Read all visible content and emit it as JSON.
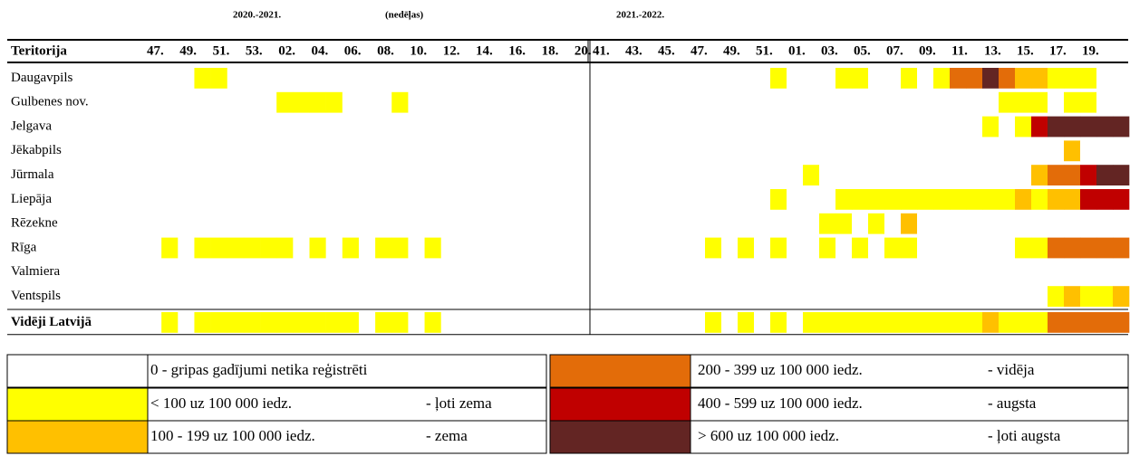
{
  "season_left": "2020.-2021.",
  "weeks_note": "(nedēļas)",
  "season_right": "2021.-2022.",
  "row_header": "Teritorija",
  "columns": {
    "left": [
      "47.",
      null,
      "49.",
      null,
      "51.",
      null,
      "53.",
      null,
      "02.",
      null,
      "04.",
      null,
      "06.",
      null,
      "08.",
      null,
      "10.",
      null,
      "12.",
      null,
      "14.",
      null,
      "16.",
      null,
      "18.",
      null,
      "20."
    ],
    "right": [
      "41.",
      null,
      "43.",
      null,
      "45.",
      null,
      "47.",
      null,
      "49.",
      null,
      "51.",
      null,
      "01.",
      null,
      "03.",
      null,
      "05.",
      null,
      "07.",
      null,
      "09.",
      null,
      "11.",
      null,
      "13.",
      null,
      "15.",
      null,
      "17.",
      null,
      "19.",
      null,
      null
    ]
  },
  "rows": [
    {
      "name": "Daugavpils",
      "left": [
        0,
        0,
        0,
        1,
        1,
        0,
        0,
        0,
        0,
        0,
        0,
        0,
        0,
        0,
        0,
        0,
        0,
        0,
        0,
        0,
        0,
        0,
        0,
        0,
        0,
        0,
        0
      ],
      "right": [
        0,
        0,
        0,
        0,
        0,
        0,
        0,
        0,
        0,
        0,
        0,
        1,
        0,
        0,
        0,
        1,
        1,
        0,
        0,
        1,
        0,
        1,
        3,
        3,
        5,
        3,
        2,
        2,
        1,
        1,
        1,
        0,
        0
      ]
    },
    {
      "name": "Gulbenes nov.",
      "left": [
        0,
        0,
        0,
        0,
        0,
        0,
        0,
        0,
        1,
        1,
        1,
        1,
        0,
        0,
        0,
        1,
        0,
        0,
        0,
        0,
        0,
        0,
        0,
        0,
        0,
        0,
        0
      ],
      "right": [
        0,
        0,
        0,
        0,
        0,
        0,
        0,
        0,
        0,
        0,
        0,
        0,
        0,
        0,
        0,
        0,
        0,
        0,
        0,
        0,
        0,
        0,
        0,
        0,
        0,
        1,
        1,
        1,
        0,
        1,
        1,
        0,
        0
      ]
    },
    {
      "name": "Jelgava",
      "left": [
        0,
        0,
        0,
        0,
        0,
        0,
        0,
        0,
        0,
        0,
        0,
        0,
        0,
        0,
        0,
        0,
        0,
        0,
        0,
        0,
        0,
        0,
        0,
        0,
        0,
        0,
        0
      ],
      "right": [
        0,
        0,
        0,
        0,
        0,
        0,
        0,
        0,
        0,
        0,
        0,
        0,
        0,
        0,
        0,
        0,
        0,
        0,
        0,
        0,
        0,
        0,
        0,
        0,
        1,
        0,
        1,
        4,
        5,
        5,
        5,
        5,
        5
      ]
    },
    {
      "name": "Jēkabpils",
      "left": [
        0,
        0,
        0,
        0,
        0,
        0,
        0,
        0,
        0,
        0,
        0,
        0,
        0,
        0,
        0,
        0,
        0,
        0,
        0,
        0,
        0,
        0,
        0,
        0,
        0,
        0,
        0
      ],
      "right": [
        0,
        0,
        0,
        0,
        0,
        0,
        0,
        0,
        0,
        0,
        0,
        0,
        0,
        0,
        0,
        0,
        0,
        0,
        0,
        0,
        0,
        0,
        0,
        0,
        0,
        0,
        0,
        0,
        0,
        2,
        0,
        0,
        0
      ]
    },
    {
      "name": "Jūrmala",
      "left": [
        0,
        0,
        0,
        0,
        0,
        0,
        0,
        0,
        0,
        0,
        0,
        0,
        0,
        0,
        0,
        0,
        0,
        0,
        0,
        0,
        0,
        0,
        0,
        0,
        0,
        0,
        0
      ],
      "right": [
        0,
        0,
        0,
        0,
        0,
        0,
        0,
        0,
        0,
        0,
        0,
        0,
        0,
        1,
        0,
        0,
        0,
        0,
        0,
        0,
        0,
        0,
        0,
        0,
        0,
        0,
        0,
        2,
        3,
        3,
        4,
        5,
        5
      ]
    },
    {
      "name": "Liepāja",
      "left": [
        0,
        0,
        0,
        0,
        0,
        0,
        0,
        0,
        0,
        0,
        0,
        0,
        0,
        0,
        0,
        0,
        0,
        0,
        0,
        0,
        0,
        0,
        0,
        0,
        0,
        0,
        0
      ],
      "right": [
        0,
        0,
        0,
        0,
        0,
        0,
        0,
        0,
        0,
        0,
        0,
        1,
        0,
        0,
        0,
        1,
        1,
        1,
        1,
        1,
        1,
        1,
        1,
        1,
        1,
        1,
        2,
        1,
        2,
        2,
        4,
        4,
        4
      ]
    },
    {
      "name": "Rēzekne",
      "left": [
        0,
        0,
        0,
        0,
        0,
        0,
        0,
        0,
        0,
        0,
        0,
        0,
        0,
        0,
        0,
        0,
        0,
        0,
        0,
        0,
        0,
        0,
        0,
        0,
        0,
        0,
        0
      ],
      "right": [
        0,
        0,
        0,
        0,
        0,
        0,
        0,
        0,
        0,
        0,
        0,
        0,
        0,
        0,
        1,
        1,
        0,
        1,
        0,
        2,
        0,
        0,
        0,
        0,
        0,
        0,
        0,
        0,
        0,
        0,
        0,
        0,
        0
      ]
    },
    {
      "name": "Rīga",
      "left": [
        0,
        1,
        0,
        1,
        1,
        1,
        1,
        1,
        1,
        0,
        1,
        0,
        1,
        0,
        1,
        1,
        0,
        1,
        0,
        0,
        0,
        0,
        0,
        0,
        0,
        0,
        0
      ],
      "right": [
        0,
        0,
        0,
        0,
        0,
        0,
        0,
        1,
        0,
        1,
        0,
        1,
        0,
        0,
        1,
        0,
        1,
        0,
        1,
        1,
        0,
        0,
        0,
        0,
        0,
        0,
        1,
        1,
        3,
        3,
        3,
        3,
        3
      ]
    },
    {
      "name": "Valmiera",
      "left": [
        0,
        0,
        0,
        0,
        0,
        0,
        0,
        0,
        0,
        0,
        0,
        0,
        0,
        0,
        0,
        0,
        0,
        0,
        0,
        0,
        0,
        0,
        0,
        0,
        0,
        0,
        0
      ],
      "right": [
        0,
        0,
        0,
        0,
        0,
        0,
        0,
        0,
        0,
        0,
        0,
        0,
        0,
        0,
        0,
        0,
        0,
        0,
        0,
        0,
        0,
        0,
        0,
        0,
        0,
        0,
        0,
        0,
        0,
        0,
        0,
        0,
        0
      ]
    },
    {
      "name": "Ventspils",
      "left": [
        0,
        0,
        0,
        0,
        0,
        0,
        0,
        0,
        0,
        0,
        0,
        0,
        0,
        0,
        0,
        0,
        0,
        0,
        0,
        0,
        0,
        0,
        0,
        0,
        0,
        0,
        0
      ],
      "right": [
        0,
        0,
        0,
        0,
        0,
        0,
        0,
        0,
        0,
        0,
        0,
        0,
        0,
        0,
        0,
        0,
        0,
        0,
        0,
        0,
        0,
        0,
        0,
        0,
        0,
        0,
        0,
        0,
        1,
        2,
        1,
        1,
        2
      ]
    },
    {
      "name": "Vidēji Latvijā",
      "left": [
        0,
        1,
        0,
        1,
        1,
        1,
        1,
        1,
        1,
        1,
        1,
        1,
        1,
        0,
        1,
        1,
        0,
        1,
        0,
        0,
        0,
        0,
        0,
        0,
        0,
        0,
        0
      ],
      "right": [
        0,
        0,
        0,
        0,
        0,
        0,
        0,
        1,
        0,
        1,
        0,
        1,
        0,
        1,
        1,
        1,
        1,
        1,
        1,
        1,
        1,
        1,
        1,
        1,
        2,
        1,
        1,
        1,
        3,
        3,
        3,
        3,
        3
      ]
    }
  ],
  "levels": [
    {
      "color": "#ffffff",
      "range": "0 - gripas gadījumi netika reģistrēti"
    },
    {
      "color": "#ffff00",
      "range": "< 100 uz 100 000 iedz.",
      "label": "- ļoti zema"
    },
    {
      "color": "#ffc000",
      "range": "100 - 199 uz 100 000 iedz.",
      "label": "- zema"
    },
    {
      "color": "#e36c09",
      "range": "200 - 399 uz 100 000 iedz.",
      "label": "- vidēja"
    },
    {
      "color": "#c00000",
      "range": "400 - 599 uz 100 000 iedz.",
      "label": "- augsta"
    },
    {
      "color": "#632523",
      "range": "> 600 uz 100 000 iedz.",
      "label": "- ļoti augsta"
    }
  ]
}
